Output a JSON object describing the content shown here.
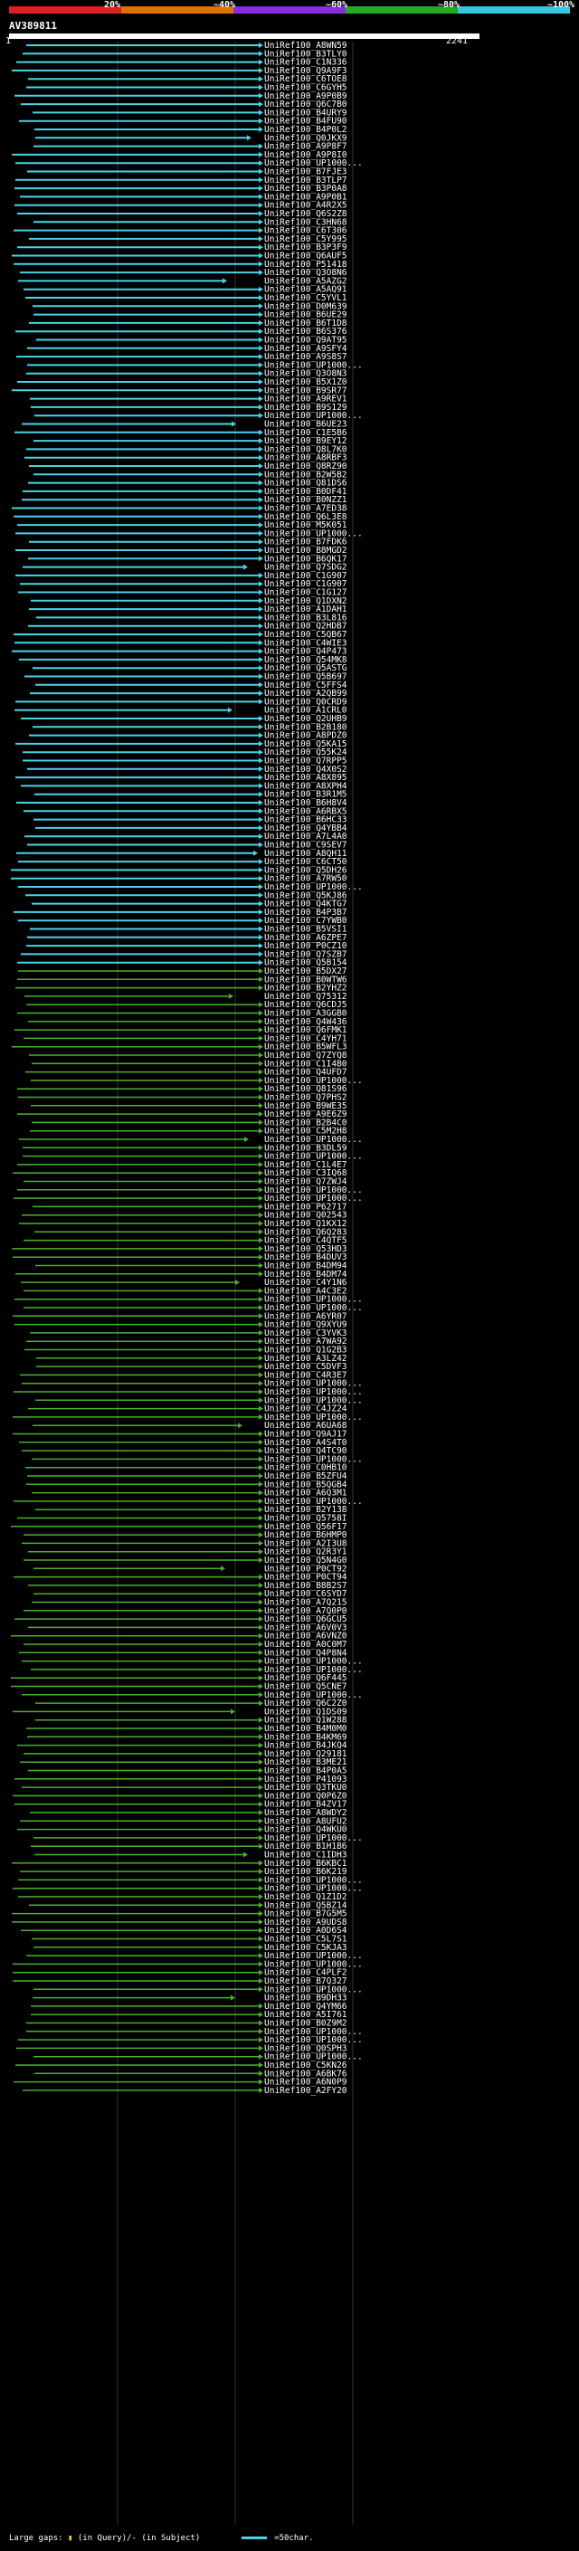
{
  "scale": {
    "ticks": [
      "20%",
      "~40%",
      "~60%",
      "~80%",
      "~100%"
    ],
    "colors": [
      "#e02020",
      "#e07000",
      "#8a2be2",
      "#22aa22",
      "#35c8e0"
    ]
  },
  "query": {
    "id": "AV389811",
    "start": "1",
    "end": "2241"
  },
  "legend": {
    "text": "Large gaps: ",
    "in_query": "(in Query)/- (in Subject)",
    "scale_text": "=50char."
  },
  "hits": [
    "UniRef100_A8WN59",
    "UniRef100_B3TLY0",
    "UniRef100_C1N336",
    "UniRef100_Q9A9F3",
    "UniRef100_C6TOE8",
    "UniRef100_C6GYH5",
    "UniRef100_A9P0B9",
    "UniRef100_Q6C7B0",
    "UniRef100_B4URY9",
    "UniRef100_B4FU90",
    "UniRef100_B4P0L2",
    "UniRef100_Q0JKX9",
    "UniRef100_A9P8F7",
    "UniRef100_A9P8I0",
    "UniRef100_UP1000...",
    "UniRef100_B7FJE3",
    "UniRef100_B3TLP7",
    "UniRef100_B3P0A8",
    "UniRef100_A9P0B1",
    "UniRef100_A4R2X5",
    "UniRef100_Q6S2Z8",
    "UniRef100_C3HN68",
    "UniRef100_C6T306",
    "UniRef100_C5Y995",
    "UniRef100_B3P3F9",
    "UniRef100_Q6AUF5",
    "UniRef100_P51418",
    "UniRef100_Q3O8N6",
    "UniRef100_A5AZG2",
    "UniRef100_A5AQ91",
    "UniRef100_C5YVL1",
    "UniRef100_D0M639",
    "UniRef100_B6UE29",
    "UniRef100_B6T1D8",
    "UniRef100_B6S376",
    "UniRef100_Q9AT95",
    "UniRef100_A9SFY4",
    "UniRef100_A9S8S7",
    "UniRef100_UP1000...",
    "UniRef100_Q3O8N3",
    "UniRef100_B5X1Z0",
    "UniRef100_B9SR77",
    "UniRef100_A9REV1",
    "UniRef100_B9S129",
    "UniRef100_UP1000...",
    "UniRef100_B6UE23",
    "UniRef100_C1E5B6",
    "UniRef100_B9EY12",
    "UniRef100_Q8L7K0",
    "UniRef100_A8RBF3",
    "UniRef100_Q8RZ90",
    "UniRef100_B2W5B2",
    "UniRef100_Q81DS6",
    "UniRef100_B0DF41",
    "UniRef100_B0NZZ1",
    "UniRef100_A7ED38",
    "UniRef100_Q6L3E8",
    "UniRef100_M5K051",
    "UniRef100_UP1000...",
    "UniRef100_B7FDK6",
    "UniRef100_B8MGD2",
    "UniRef100_B6QK17",
    "UniRef100_Q7SDG2",
    "UniRef100_C1G907",
    "UniRef100_C1G907",
    "UniRef100_C1G127",
    "UniRef100_Q1DXN2",
    "UniRef100_A1DAH1",
    "UniRef100_B3L816",
    "UniRef100_Q2HDB7",
    "UniRef100_C5QB67",
    "UniRef100_C4WIE3",
    "UniRef100_Q4P473",
    "UniRef100_Q54MK8",
    "UniRef100_Q5ASTG",
    "UniRef100_Q5B697",
    "UniRef100_C5FFS4",
    "UniRef100_A2QB99",
    "UniRef100_Q0CRD9",
    "UniRef100_A1CRL0",
    "UniRef100_Q2UHB9",
    "UniRef100_B2B180",
    "UniRef100_A8PDZ0",
    "UniRef100_Q5KA15",
    "UniRef100_Q55K24",
    "UniRef100_Q7RPP5",
    "UniRef100_Q4X0S2",
    "UniRef100_A8X895",
    "UniRef100_A8XPH4",
    "UniRef100_B3R1M5",
    "UniRef100_B6H8V4",
    "UniRef100_A6RBX5",
    "UniRef100_B6HC33",
    "UniRef100_Q4YBB4",
    "UniRef100_A7L4A0",
    "UniRef100_C9SEV7",
    "UniRef100_A8QH11",
    "UniRef100_C6CT50",
    "UniRef100_Q5DH26",
    "UniRef100_A7RW50",
    "UniRef100_UP1000...",
    "UniRef100_Q5KJ86",
    "UniRef100_Q4KTG7",
    "UniRef100_B4P3B7",
    "UniRef100_C7YWB0",
    "UniRef100_B5VSI1",
    "UniRef100_A6ZPE7",
    "UniRef100_P0CZ10",
    "UniRef100_Q7SZB7",
    "UniRef100_Q5B154",
    "UniRef100_B5DX27",
    "UniRef100_B0WTW6",
    "UniRef100_B2YHZ2",
    "UniRef100_Q75312",
    "UniRef100_Q6CDJ5",
    "UniRef100_A3GGB0",
    "UniRef100_Q4W436",
    "UniRef100_Q6FMK1",
    "UniRef100_C4YH71",
    "UniRef100_B5WFL3",
    "UniRef100_Q7ZYQ8",
    "UniRef100_C1I4B0",
    "UniRef100_Q4UFD7",
    "UniRef100_UP1000...",
    "UniRef100_Q81S96",
    "UniRef100_Q7PHS2",
    "UniRef100_B9WE35",
    "UniRef100_A9E6Z9",
    "UniRef100_B2B4C0",
    "UniRef100_C5M2H8",
    "UniRef100_UP1000...",
    "UniRef100_B3DL59",
    "UniRef100_UP1000...",
    "UniRef100_C1L4E7",
    "UniRef100_C3IQ68",
    "UniRef100_Q7ZWJ4",
    "UniRef100_UP1000...",
    "UniRef100_UP1000...",
    "UniRef100_P62717",
    "UniRef100_Q02543",
    "UniRef100_Q1KX12",
    "UniRef100_Q6Q283",
    "UniRef100_C4QTF5",
    "UniRef100_Q53HD3",
    "UniRef100_B4DUV3",
    "UniRef100_B4DM94",
    "UniRef100_B4DM74",
    "UniRef100_C4Y1N6",
    "UniRef100_A4C3E2",
    "UniRef100_UP1000...",
    "UniRef100_UP1000...",
    "UniRef100_A6YR07",
    "UniRef100_Q9XYU9",
    "UniRef100_C3YVK3",
    "UniRef100_A7WA92",
    "UniRef100_Q1G2B3",
    "UniRef100_A3LZ42",
    "UniRef100_C5DVF3",
    "UniRef100_C4R3E7",
    "UniRef100_UP1000...",
    "UniRef100_UP1000...",
    "UniRef100_UP1000...",
    "UniRef100_C4JZ24",
    "UniRef100_UP1000...",
    "UniRef100_A6UA68",
    "UniRef100_Q9AJ17",
    "UniRef100_A4S4T0",
    "UniRef100_Q4TC90",
    "UniRef100_UP1000...",
    "UniRef100_C0HB10",
    "UniRef100_B5ZFU4",
    "UniRef100_B5QGB4",
    "UniRef100_A6Q3M1",
    "UniRef100_UP1000...",
    "UniRef100_B2Y138",
    "UniRef100_Q5758I",
    "UniRef100_Q56F17",
    "UniRef100_B6HMP0",
    "UniRef100_A2I3U8",
    "UniRef100_Q2R3Y1",
    "UniRef100_Q5N4G0",
    "UniRef100_P0CT92",
    "UniRef100_P0CT94",
    "UniRef100_B8B2S7",
    "UniRef100_C6SYD7",
    "UniRef100_A7Q215",
    "UniRef100_A7Q0P0",
    "UniRef100_Q6GCU5",
    "UniRef100_A6V0V3",
    "UniRef100_A6VNZ0",
    "UniRef100_A0C0M7",
    "UniRef100_Q4P8N4",
    "UniRef100_UP1000...",
    "UniRef100_UP1000...",
    "UniRef100_Q6F445",
    "UniRef100_Q5CNE7",
    "UniRef100_UP1000...",
    "UniRef100_Q6C2Z0",
    "UniRef100_Q1DS09",
    "UniRef100_Q1W288",
    "UniRef100_B4M0M0",
    "UniRef100_B4KM69",
    "UniRef100_B4JKQ4",
    "UniRef100_Q29181",
    "UniRef100_B3ME21",
    "UniRef100_B4P0A5",
    "UniRef100_P41093",
    "UniRef100_Q3TKU0",
    "UniRef100_Q0P6Z0",
    "UniRef100_B4ZV17",
    "UniRef100_A8WDY2",
    "UniRef100_A8UFU2",
    "UniRef100_Q4WKU0",
    "UniRef100_UP1000...",
    "UniRef100_B1H1B6",
    "UniRef100_C1IDH3",
    "UniRef100_B6KBC1",
    "UniRef100_B6K219",
    "UniRef100_UP1000...",
    "UniRef100_UP1000...",
    "UniRef100_Q1Z1D2",
    "UniRef100_Q5BZ14",
    "UniRef100_B7G5M5",
    "UniRef100_A9UDS8",
    "UniRef100_A0D6S4",
    "UniRef100_C5L7S1",
    "UniRef100_C5KJA3",
    "UniRef100_UP1000...",
    "UniRef100_UP1000...",
    "UniRef100_C4PLF2",
    "UniRef100_B7Q327",
    "UniRef100_UP1000...",
    "UniRef100_B9DH33",
    "UniRef100_Q4YM66",
    "UniRef100_A5I761",
    "UniRef100_B0Z9M2",
    "UniRef100_UP1000...",
    "UniRef100_UP1000...",
    "UniRef100_Q0SPH3",
    "UniRef100_UP1000...",
    "UniRef100_C5KN26",
    "UniRef100_A6BK76",
    "UniRef100_A6N0P9",
    "UniRef100_A2FY20"
  ]
}
